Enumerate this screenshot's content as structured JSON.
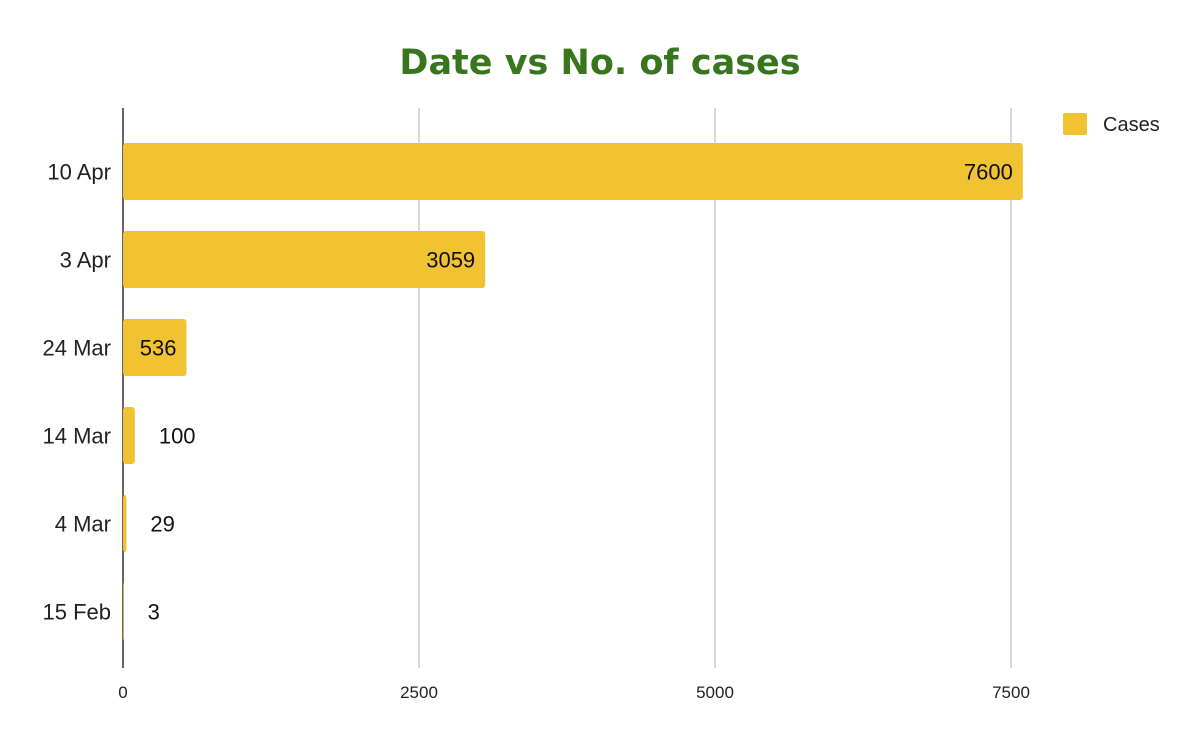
{
  "chart_data": {
    "type": "bar",
    "orientation": "horizontal",
    "title": "Date vs No. of cases",
    "categories": [
      "10 Apr",
      "3 Apr",
      "24 Mar",
      "14 Mar",
      "4 Mar",
      "15 Feb"
    ],
    "series": [
      {
        "name": "Cases",
        "values": [
          7600,
          3059,
          536,
          100,
          29,
          3
        ]
      }
    ],
    "data_labels": [
      "7600",
      "3059",
      "536",
      "100",
      "29",
      "3"
    ],
    "x_ticks": [
      0,
      2500,
      5000,
      7500
    ],
    "x_tick_labels": [
      "0",
      "2500",
      "5000",
      "7500"
    ],
    "xlim": [
      0,
      7500
    ],
    "xlabel": "",
    "ylabel": "",
    "grid": true,
    "legend_position": "top-right",
    "colors": {
      "bar": "#F1C232",
      "title": "#38761D",
      "grid": "#CCCCCC",
      "axis": "#333333"
    }
  }
}
